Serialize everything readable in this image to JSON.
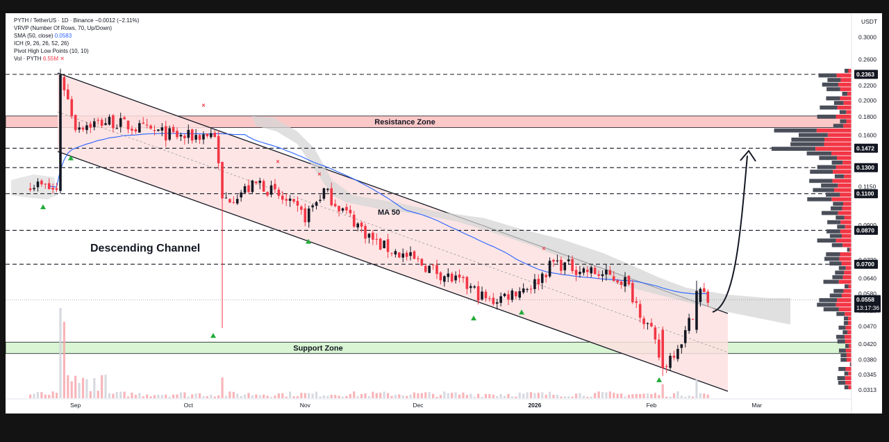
{
  "legend": {
    "line1": "PYTH / TetherUS · 1D · Binance",
    "line1_change": "−0.0012 (−2.11%)",
    "line2": "VRVP (Number Of Rows, 70, Up/Down)",
    "line3": "SMA (50, close)",
    "line3_value": "0.0583",
    "line4": "ICH (9, 26, 26, 52, 26)",
    "line5": "Pivot High Low Points (10, 10)",
    "line6": "Vol · PYTH",
    "line6_value": "6.55M"
  },
  "axis": {
    "currency": "USDT",
    "ticks": [
      "0.3000",
      "0.2600",
      "0.2200",
      "0.2000",
      "0.1800",
      "0.1600",
      "0.1150",
      "0.0900",
      "0.0720",
      "0.0640",
      "0.0580",
      "0.0520",
      "0.0470",
      "0.0420",
      "0.0380",
      "0.0345",
      "0.0313"
    ],
    "dates": [
      "Sep",
      "Oct",
      "Nov",
      "Dec",
      "2026",
      "Feb",
      "Mar"
    ]
  },
  "tags": [
    {
      "label": "0.2363",
      "color": "#131722"
    },
    {
      "label": "0.1472",
      "color": "#131722"
    },
    {
      "label": "0.1300",
      "color": "#131722"
    },
    {
      "label": "0.1100",
      "color": "#131722"
    },
    {
      "label": "0.0870",
      "color": "#131722"
    },
    {
      "label": "0.0700",
      "color": "#131722"
    }
  ],
  "last_price": {
    "label": "0.0558",
    "timer": "13:17:36",
    "color": "#131722"
  },
  "annotations": {
    "resistance": "Resistance Zone",
    "support": "Support Zone",
    "channel": "Descending Channel",
    "ma": "MA 50"
  },
  "colors": {
    "up": "#131722",
    "down": "#f23645",
    "sma": "#2962ff",
    "channel_fill": "#fde0e0",
    "resistance_fill": "#fbc8c8",
    "support_fill": "#d9f5d3",
    "cloud": "#d6d6d6",
    "pivot_low": "#22ab38",
    "pivot_high": "#f23645"
  },
  "chart_data": {
    "type": "candlestick",
    "symbol": "PYTH / TetherUS",
    "interval": "1D",
    "exchange": "Binance",
    "y_scale": "log",
    "ylim": [
      0.03,
      0.33
    ],
    "x_labels": [
      "Sep",
      "Oct",
      "Nov",
      "Dec",
      "2026",
      "Feb",
      "Mar"
    ],
    "close_path": [
      {
        "date": "2025-08-20",
        "close": 0.118
      },
      {
        "date": "2025-08-27",
        "close": 0.112
      },
      {
        "date": "2025-08-28",
        "close": 0.236
      },
      {
        "date": "2025-09-01",
        "close": 0.17
      },
      {
        "date": "2025-09-10",
        "close": 0.175
      },
      {
        "date": "2025-09-20",
        "close": 0.165
      },
      {
        "date": "2025-09-30",
        "close": 0.158
      },
      {
        "date": "2025-10-08",
        "close": 0.162
      },
      {
        "date": "2025-10-10",
        "close": 0.105
      },
      {
        "date": "2025-10-20",
        "close": 0.118
      },
      {
        "date": "2025-11-01",
        "close": 0.095
      },
      {
        "date": "2025-11-06",
        "close": 0.112
      },
      {
        "date": "2025-11-20",
        "close": 0.08
      },
      {
        "date": "2025-12-01",
        "close": 0.071
      },
      {
        "date": "2025-12-15",
        "close": 0.06
      },
      {
        "date": "2025-12-20",
        "close": 0.055
      },
      {
        "date": "2026-01-01",
        "close": 0.062
      },
      {
        "date": "2026-01-06",
        "close": 0.071
      },
      {
        "date": "2026-01-15",
        "close": 0.067
      },
      {
        "date": "2026-01-25",
        "close": 0.063
      },
      {
        "date": "2026-02-01",
        "close": 0.045
      },
      {
        "date": "2026-02-04",
        "close": 0.036
      },
      {
        "date": "2026-02-10",
        "close": 0.045
      },
      {
        "date": "2026-02-14",
        "close": 0.059
      },
      {
        "date": "2026-02-16",
        "close": 0.0558
      }
    ],
    "horizontal_levels": [
      0.2363,
      0.1472,
      0.13,
      0.11,
      0.087,
      0.07
    ],
    "resistance_zone": [
      0.168,
      0.181
    ],
    "support_zone": [
      0.0395,
      0.0425
    ],
    "sma_last": 0.0583,
    "last_close": 0.0558,
    "change": -0.0012,
    "change_pct": -2.11,
    "volume_last": "6.55M"
  }
}
